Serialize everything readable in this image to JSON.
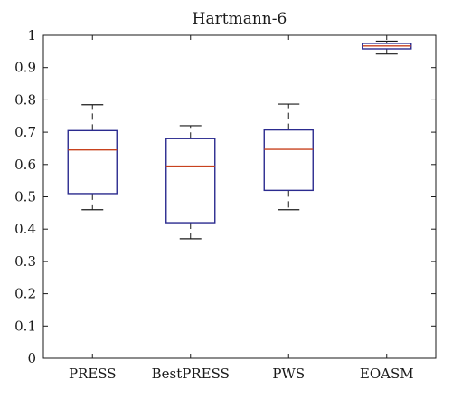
{
  "chart_data": {
    "type": "box",
    "title": "Hartmann-6",
    "xlabel": "",
    "ylabel": "",
    "ylim": [
      0,
      1
    ],
    "yticks": [
      0,
      0.1,
      0.2,
      0.3,
      0.4,
      0.5,
      0.6,
      0.7,
      0.8,
      0.9,
      1
    ],
    "ytick_labels": [
      "0",
      "0.1",
      "0.2",
      "0.3",
      "0.4",
      "0.5",
      "0.6",
      "0.7",
      "0.8",
      "0.9",
      "1"
    ],
    "categories": [
      "PRESS",
      "BestPRESS",
      "PWS",
      "EOASM"
    ],
    "boxes": [
      {
        "label": "PRESS",
        "whisker_low": 0.46,
        "q1": 0.51,
        "median": 0.645,
        "q3": 0.705,
        "whisker_high": 0.785
      },
      {
        "label": "BestPRESS",
        "whisker_low": 0.37,
        "q1": 0.42,
        "median": 0.595,
        "q3": 0.68,
        "whisker_high": 0.72
      },
      {
        "label": "PWS",
        "whisker_low": 0.46,
        "q1": 0.52,
        "median": 0.647,
        "q3": 0.707,
        "whisker_high": 0.787
      },
      {
        "label": "EOASM",
        "whisker_low": 0.942,
        "q1": 0.958,
        "median": 0.967,
        "q3": 0.975,
        "whisker_high": 0.982
      }
    ],
    "grid": false,
    "colors": {
      "box": "#2b2b8f",
      "median": "#c8421e",
      "whisker": "#1a1a1a",
      "axis": "#1a1a1a"
    }
  }
}
